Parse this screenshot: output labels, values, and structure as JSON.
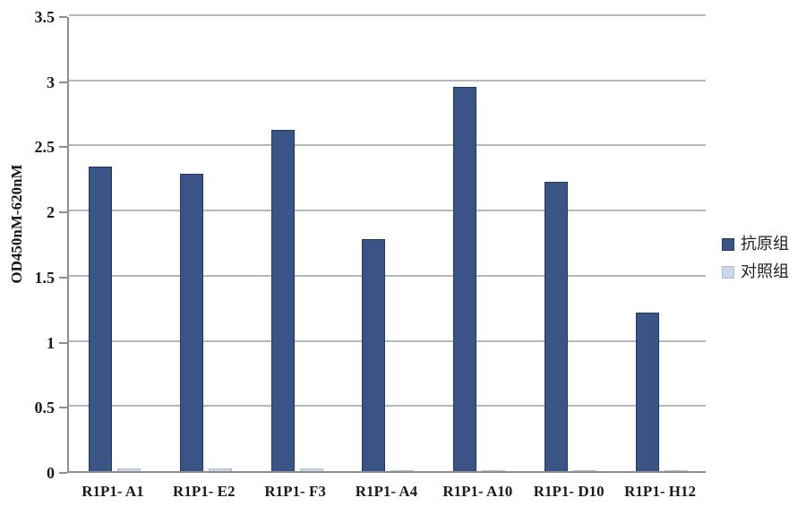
{
  "chart_data": {
    "type": "bar",
    "title": "",
    "ylabel": "OD450nM-620nM",
    "xlabel": "",
    "ylim": [
      0,
      3.5
    ],
    "ytick_labels": [
      "0",
      "0.5",
      "1",
      "1.5",
      "2",
      "2.5",
      "3",
      "3.5"
    ],
    "grid": "horizontal",
    "legend_position": "right",
    "categories": [
      "R1P1- A1",
      "R1P1- E2",
      "R1P1- F3",
      "R1P1- A4",
      "R1P1- A10",
      "R1P1- D10",
      "R1P1- H12"
    ],
    "series": [
      {
        "name": "抗原组",
        "color": "#3a5485",
        "values": [
          2.34,
          2.28,
          2.62,
          1.78,
          2.95,
          2.22,
          1.22
        ]
      },
      {
        "name": "对照组",
        "color": "#cbd7e9",
        "values": [
          0.02,
          0.02,
          0.02,
          0.01,
          0.01,
          0.01,
          0.01
        ]
      }
    ]
  }
}
